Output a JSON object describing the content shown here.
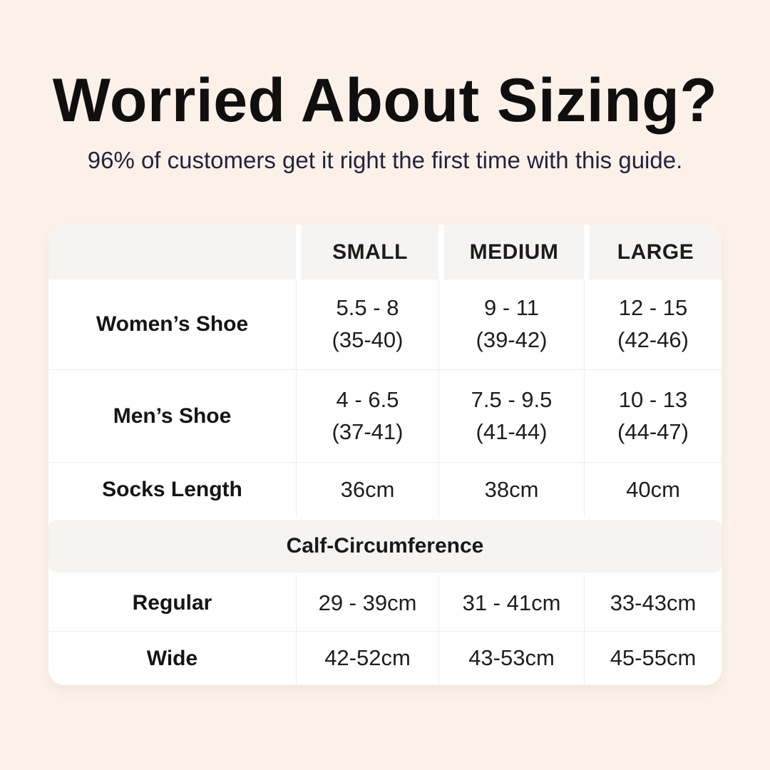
{
  "page": {
    "background_color": "#fcf1e8",
    "table_background_color": "#ffffff",
    "header_band_color": "#f5f4f2",
    "grid_line_color": "#ededed",
    "subtitle_color": "#23233f",
    "text_color": "#1e1e1e"
  },
  "header": {
    "title": "Worried About Sizing?",
    "subtitle": "96% of customers get it right the first time with this guide."
  },
  "table": {
    "columns": [
      "",
      "SMALL",
      "MEDIUM",
      "LARGE"
    ],
    "rows": [
      {
        "label": "Women’s Shoe",
        "values": [
          [
            "5.5 - 8",
            "(35-40)"
          ],
          [
            "9 - 11",
            "(39-42)"
          ],
          [
            "12 - 15",
            "(42-46)"
          ]
        ]
      },
      {
        "label": "Men’s Shoe",
        "values": [
          [
            "4 - 6.5",
            "(37-41)"
          ],
          [
            "7.5 - 9.5",
            "(41-44)"
          ],
          [
            "10 - 13",
            "(44-47)"
          ]
        ]
      },
      {
        "label": "Socks Length",
        "values": [
          [
            "36cm"
          ],
          [
            "38cm"
          ],
          [
            "40cm"
          ]
        ]
      }
    ],
    "section_header": "Calf-Circumference",
    "section_rows": [
      {
        "label": "Regular",
        "values": [
          [
            "29 - 39cm"
          ],
          [
            "31 - 41cm"
          ],
          [
            "33-43cm"
          ]
        ]
      },
      {
        "label": "Wide",
        "values": [
          [
            "42-52cm"
          ],
          [
            "43-53cm"
          ],
          [
            "45-55cm"
          ]
        ]
      }
    ]
  }
}
